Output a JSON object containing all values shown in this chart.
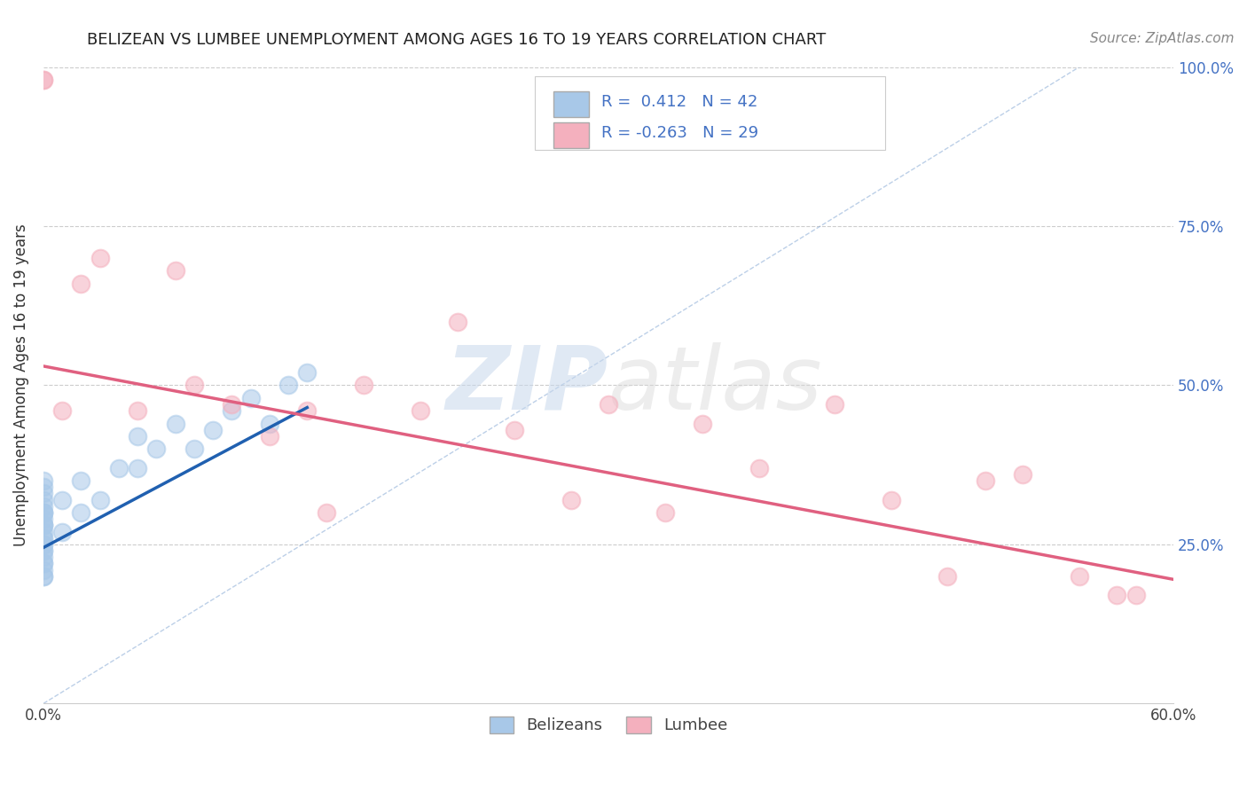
{
  "title": "BELIZEAN VS LUMBEE UNEMPLOYMENT AMONG AGES 16 TO 19 YEARS CORRELATION CHART",
  "source_text": "Source: ZipAtlas.com",
  "ylabel": "Unemployment Among Ages 16 to 19 years",
  "xlim": [
    0.0,
    0.6
  ],
  "ylim": [
    0.0,
    1.0
  ],
  "ytick_positions": [
    0.25,
    0.5,
    0.75,
    1.0
  ],
  "ytick_labels": [
    "25.0%",
    "50.0%",
    "75.0%",
    "100.0%"
  ],
  "belizean_R": 0.412,
  "belizean_N": 42,
  "lumbee_R": -0.263,
  "lumbee_N": 29,
  "belizean_color": "#a8c8e8",
  "lumbee_color": "#f4b0be",
  "belizean_line_color": "#2060b0",
  "lumbee_line_color": "#e06080",
  "belizean_scatter_x": [
    0.0,
    0.0,
    0.0,
    0.0,
    0.0,
    0.0,
    0.0,
    0.0,
    0.0,
    0.0,
    0.0,
    0.0,
    0.0,
    0.0,
    0.0,
    0.0,
    0.0,
    0.0,
    0.0,
    0.0,
    0.0,
    0.0,
    0.0,
    0.0,
    0.0,
    0.01,
    0.01,
    0.02,
    0.02,
    0.03,
    0.04,
    0.05,
    0.05,
    0.06,
    0.07,
    0.08,
    0.09,
    0.1,
    0.11,
    0.12,
    0.13,
    0.14
  ],
  "belizean_scatter_y": [
    0.2,
    0.21,
    0.22,
    0.23,
    0.24,
    0.25,
    0.25,
    0.26,
    0.27,
    0.28,
    0.28,
    0.29,
    0.3,
    0.3,
    0.31,
    0.32,
    0.33,
    0.34,
    0.35,
    0.2,
    0.22,
    0.24,
    0.26,
    0.28,
    0.3,
    0.27,
    0.32,
    0.3,
    0.35,
    0.32,
    0.37,
    0.37,
    0.42,
    0.4,
    0.44,
    0.4,
    0.43,
    0.46,
    0.48,
    0.44,
    0.5,
    0.52
  ],
  "lumbee_scatter_x": [
    0.0,
    0.0,
    0.01,
    0.02,
    0.03,
    0.05,
    0.07,
    0.08,
    0.1,
    0.12,
    0.14,
    0.15,
    0.17,
    0.2,
    0.22,
    0.25,
    0.28,
    0.3,
    0.33,
    0.35,
    0.38,
    0.42,
    0.45,
    0.48,
    0.5,
    0.52,
    0.55,
    0.57,
    0.58
  ],
  "lumbee_scatter_y": [
    0.98,
    0.98,
    0.46,
    0.66,
    0.7,
    0.46,
    0.68,
    0.5,
    0.47,
    0.42,
    0.46,
    0.3,
    0.5,
    0.46,
    0.6,
    0.43,
    0.32,
    0.47,
    0.3,
    0.44,
    0.37,
    0.47,
    0.32,
    0.2,
    0.35,
    0.36,
    0.2,
    0.17,
    0.17
  ],
  "belizean_trend_x": [
    0.0,
    0.14
  ],
  "belizean_trend_y": [
    0.245,
    0.465
  ],
  "lumbee_trend_x": [
    0.0,
    0.6
  ],
  "lumbee_trend_y": [
    0.53,
    0.195
  ],
  "dashed_line_x": [
    0.0,
    0.55
  ],
  "dashed_line_y": [
    0.0,
    1.0
  ],
  "watermark_zip": "ZIP",
  "watermark_atlas": "atlas",
  "background_color": "#ffffff",
  "legend_belizean_label": "Belizeans",
  "legend_lumbee_label": "Lumbee",
  "title_fontsize": 13,
  "source_fontsize": 11,
  "axis_label_fontsize": 12,
  "tick_fontsize": 12,
  "legend_fontsize": 13
}
